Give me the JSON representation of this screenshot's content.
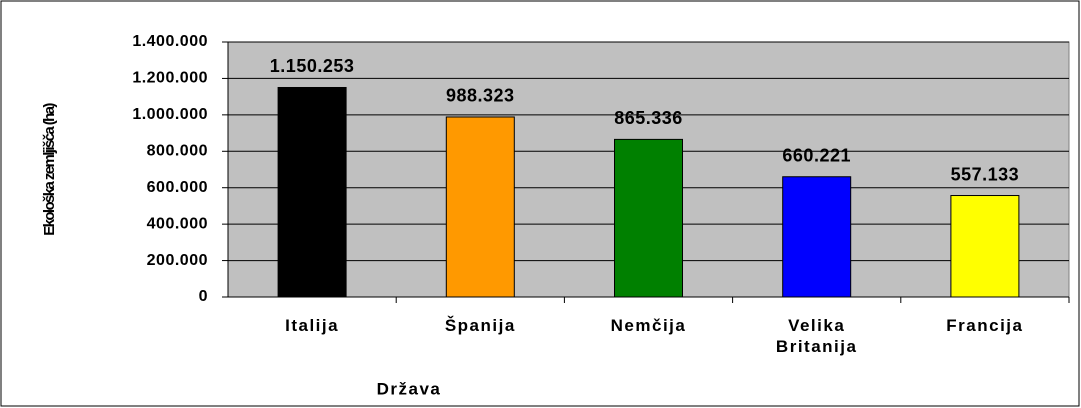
{
  "chart_data": {
    "type": "bar",
    "categories": [
      "Italija",
      "Španija",
      "Nemčija",
      "Velika Britanija",
      "Francija"
    ],
    "values": [
      1150253,
      988323,
      865336,
      660221,
      557133
    ],
    "value_labels": [
      "1.150.253",
      "988.323",
      "865.336",
      "660.221",
      "557.133"
    ],
    "colors": [
      "#000000",
      "#ff9900",
      "#008000",
      "#0000ff",
      "#ffff00"
    ],
    "ylim": [
      0,
      1400000
    ],
    "yticks": [
      {
        "value": 0,
        "label": "0"
      },
      {
        "value": 200000,
        "label": "200.000"
      },
      {
        "value": 400000,
        "label": "400.000"
      },
      {
        "value": 600000,
        "label": "600.000"
      },
      {
        "value": 800000,
        "label": "800.000"
      },
      {
        "value": 1000000,
        "label": "1.000.000"
      },
      {
        "value": 1200000,
        "label": "1.200.000"
      },
      {
        "value": 1400000,
        "label": "1.400.000"
      }
    ],
    "ylabel": "Ekološka zemljišča (ha)",
    "xlabel": "Država",
    "grid": true,
    "plot_background": "#c0c0c0"
  }
}
